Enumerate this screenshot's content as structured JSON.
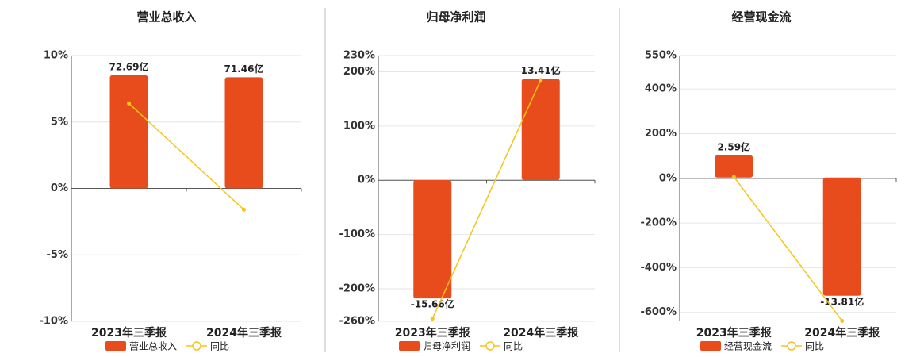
{
  "chart_data": [
    {
      "type": "bar-line",
      "title": "营业总收入",
      "categories": [
        "2023年三季报",
        "2024年三季报"
      ],
      "series": [
        {
          "name": "营业总收入",
          "color": "#e84c1c",
          "axis": "y2",
          "values": [
            72.69,
            71.46
          ],
          "value_labels": [
            "72.69亿",
            "71.46亿"
          ]
        },
        {
          "name": "同比",
          "color": "#f5c518",
          "values": [
            6.4,
            -1.6
          ]
        }
      ],
      "ylim": [
        -10,
        10
      ],
      "yticks": [
        {
          "value": -10,
          "label": "-10%"
        },
        {
          "value": -5,
          "label": "-5%"
        },
        {
          "value": 0,
          "label": "0%"
        },
        {
          "value": 5,
          "label": "5%"
        },
        {
          "value": 10,
          "label": "10%"
        }
      ],
      "y2lim": [
        -85.4,
        85.4
      ],
      "grid": true
    },
    {
      "type": "bar-line",
      "title": "归母净利润",
      "categories": [
        "2023年三季报",
        "2024年三季报"
      ],
      "series": [
        {
          "name": "归母净利润",
          "color": "#e84c1c",
          "axis": "y2",
          "values": [
            -15.66,
            13.41
          ],
          "value_labels": [
            "-15.66亿",
            "13.41亿"
          ]
        },
        {
          "name": "同比",
          "color": "#f5c518",
          "values": [
            -255,
            185
          ]
        }
      ],
      "ylim": [
        -260,
        230
      ],
      "yticks": [
        {
          "value": -260,
          "label": "-260%"
        },
        {
          "value": -200,
          "label": "-200%"
        },
        {
          "value": -100,
          "label": "-100%"
        },
        {
          "value": 0,
          "label": "0%"
        },
        {
          "value": 100,
          "label": "100%"
        },
        {
          "value": 200,
          "label": "200%"
        },
        {
          "value": 230,
          "label": "230%"
        }
      ],
      "y2lim": [
        -18.7,
        16.5
      ],
      "grid": true
    },
    {
      "type": "bar-line",
      "title": "经营现金流",
      "categories": [
        "2023年三季报",
        "2024年三季报"
      ],
      "series": [
        {
          "name": "经营现金流",
          "color": "#e84c1c",
          "axis": "y2",
          "values": [
            2.59,
            -13.81
          ],
          "value_labels": [
            "2.59亿",
            "-13.81亿"
          ]
        },
        {
          "name": "同比",
          "color": "#f5c518",
          "values": [
            7,
            -638
          ]
        }
      ],
      "ylim": [
        -640,
        550
      ],
      "yticks": [
        {
          "value": -600,
          "label": "-600%"
        },
        {
          "value": -400,
          "label": "-400%"
        },
        {
          "value": -200,
          "label": "-200%"
        },
        {
          "value": 0,
          "label": "0%"
        },
        {
          "value": 200,
          "label": "200%"
        },
        {
          "value": 400,
          "label": "400%"
        },
        {
          "value": 550,
          "label": "550%"
        }
      ],
      "y2lim": [
        -16.8,
        14.26
      ],
      "grid": true
    }
  ]
}
